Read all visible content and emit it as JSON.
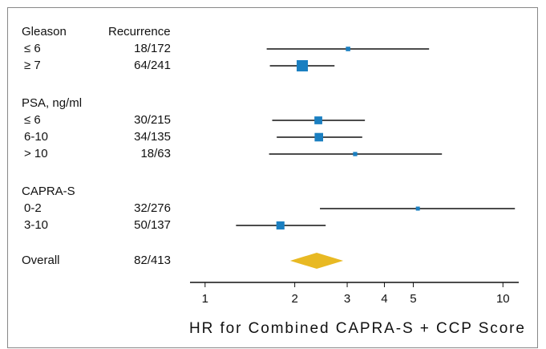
{
  "chart_data": {
    "type": "forest",
    "column_header": "Recurrence",
    "groups": [
      {
        "name": "Gleason",
        "rows": [
          {
            "label": "≤ 6",
            "events": "18/172",
            "hr": 3.02,
            "ci": [
              1.61,
              5.65
            ]
          },
          {
            "label": "≥ 7",
            "events": "64/241",
            "hr": 2.12,
            "ci": [
              1.65,
              2.72
            ]
          }
        ]
      },
      {
        "name": "PSA, ng/ml",
        "rows": [
          {
            "label": "≤ 6",
            "events": "30/215",
            "hr": 2.4,
            "ci": [
              1.68,
              3.44
            ]
          },
          {
            "label": "6-10",
            "events": "34/135",
            "hr": 2.41,
            "ci": [
              1.74,
              3.37
            ]
          },
          {
            "label": "> 10",
            "events": "18/63",
            "hr": 3.19,
            "ci": [
              1.64,
              6.24
            ]
          }
        ]
      },
      {
        "name": "CAPRA-S",
        "rows": [
          {
            "label": "0-2",
            "events": "32/276",
            "hr": 5.18,
            "ci": [
              2.43,
              10.97
            ]
          },
          {
            "label": "3-10",
            "events": "50/137",
            "hr": 1.79,
            "ci": [
              1.27,
              2.54
            ]
          }
        ]
      }
    ],
    "overall": {
      "label": "Overall",
      "events": "82/413",
      "hr": 2.37,
      "ci": [
        1.93,
        2.91
      ]
    },
    "xlabel": "HR for Combined CAPRA-S + CCP Score",
    "xlim": [
      0.89,
      11.3
    ],
    "xticks": [
      1,
      2,
      3,
      4,
      5,
      10
    ],
    "log_scale": true,
    "marker_color": "#1a7fc1",
    "overall_color": "#e8b923"
  }
}
